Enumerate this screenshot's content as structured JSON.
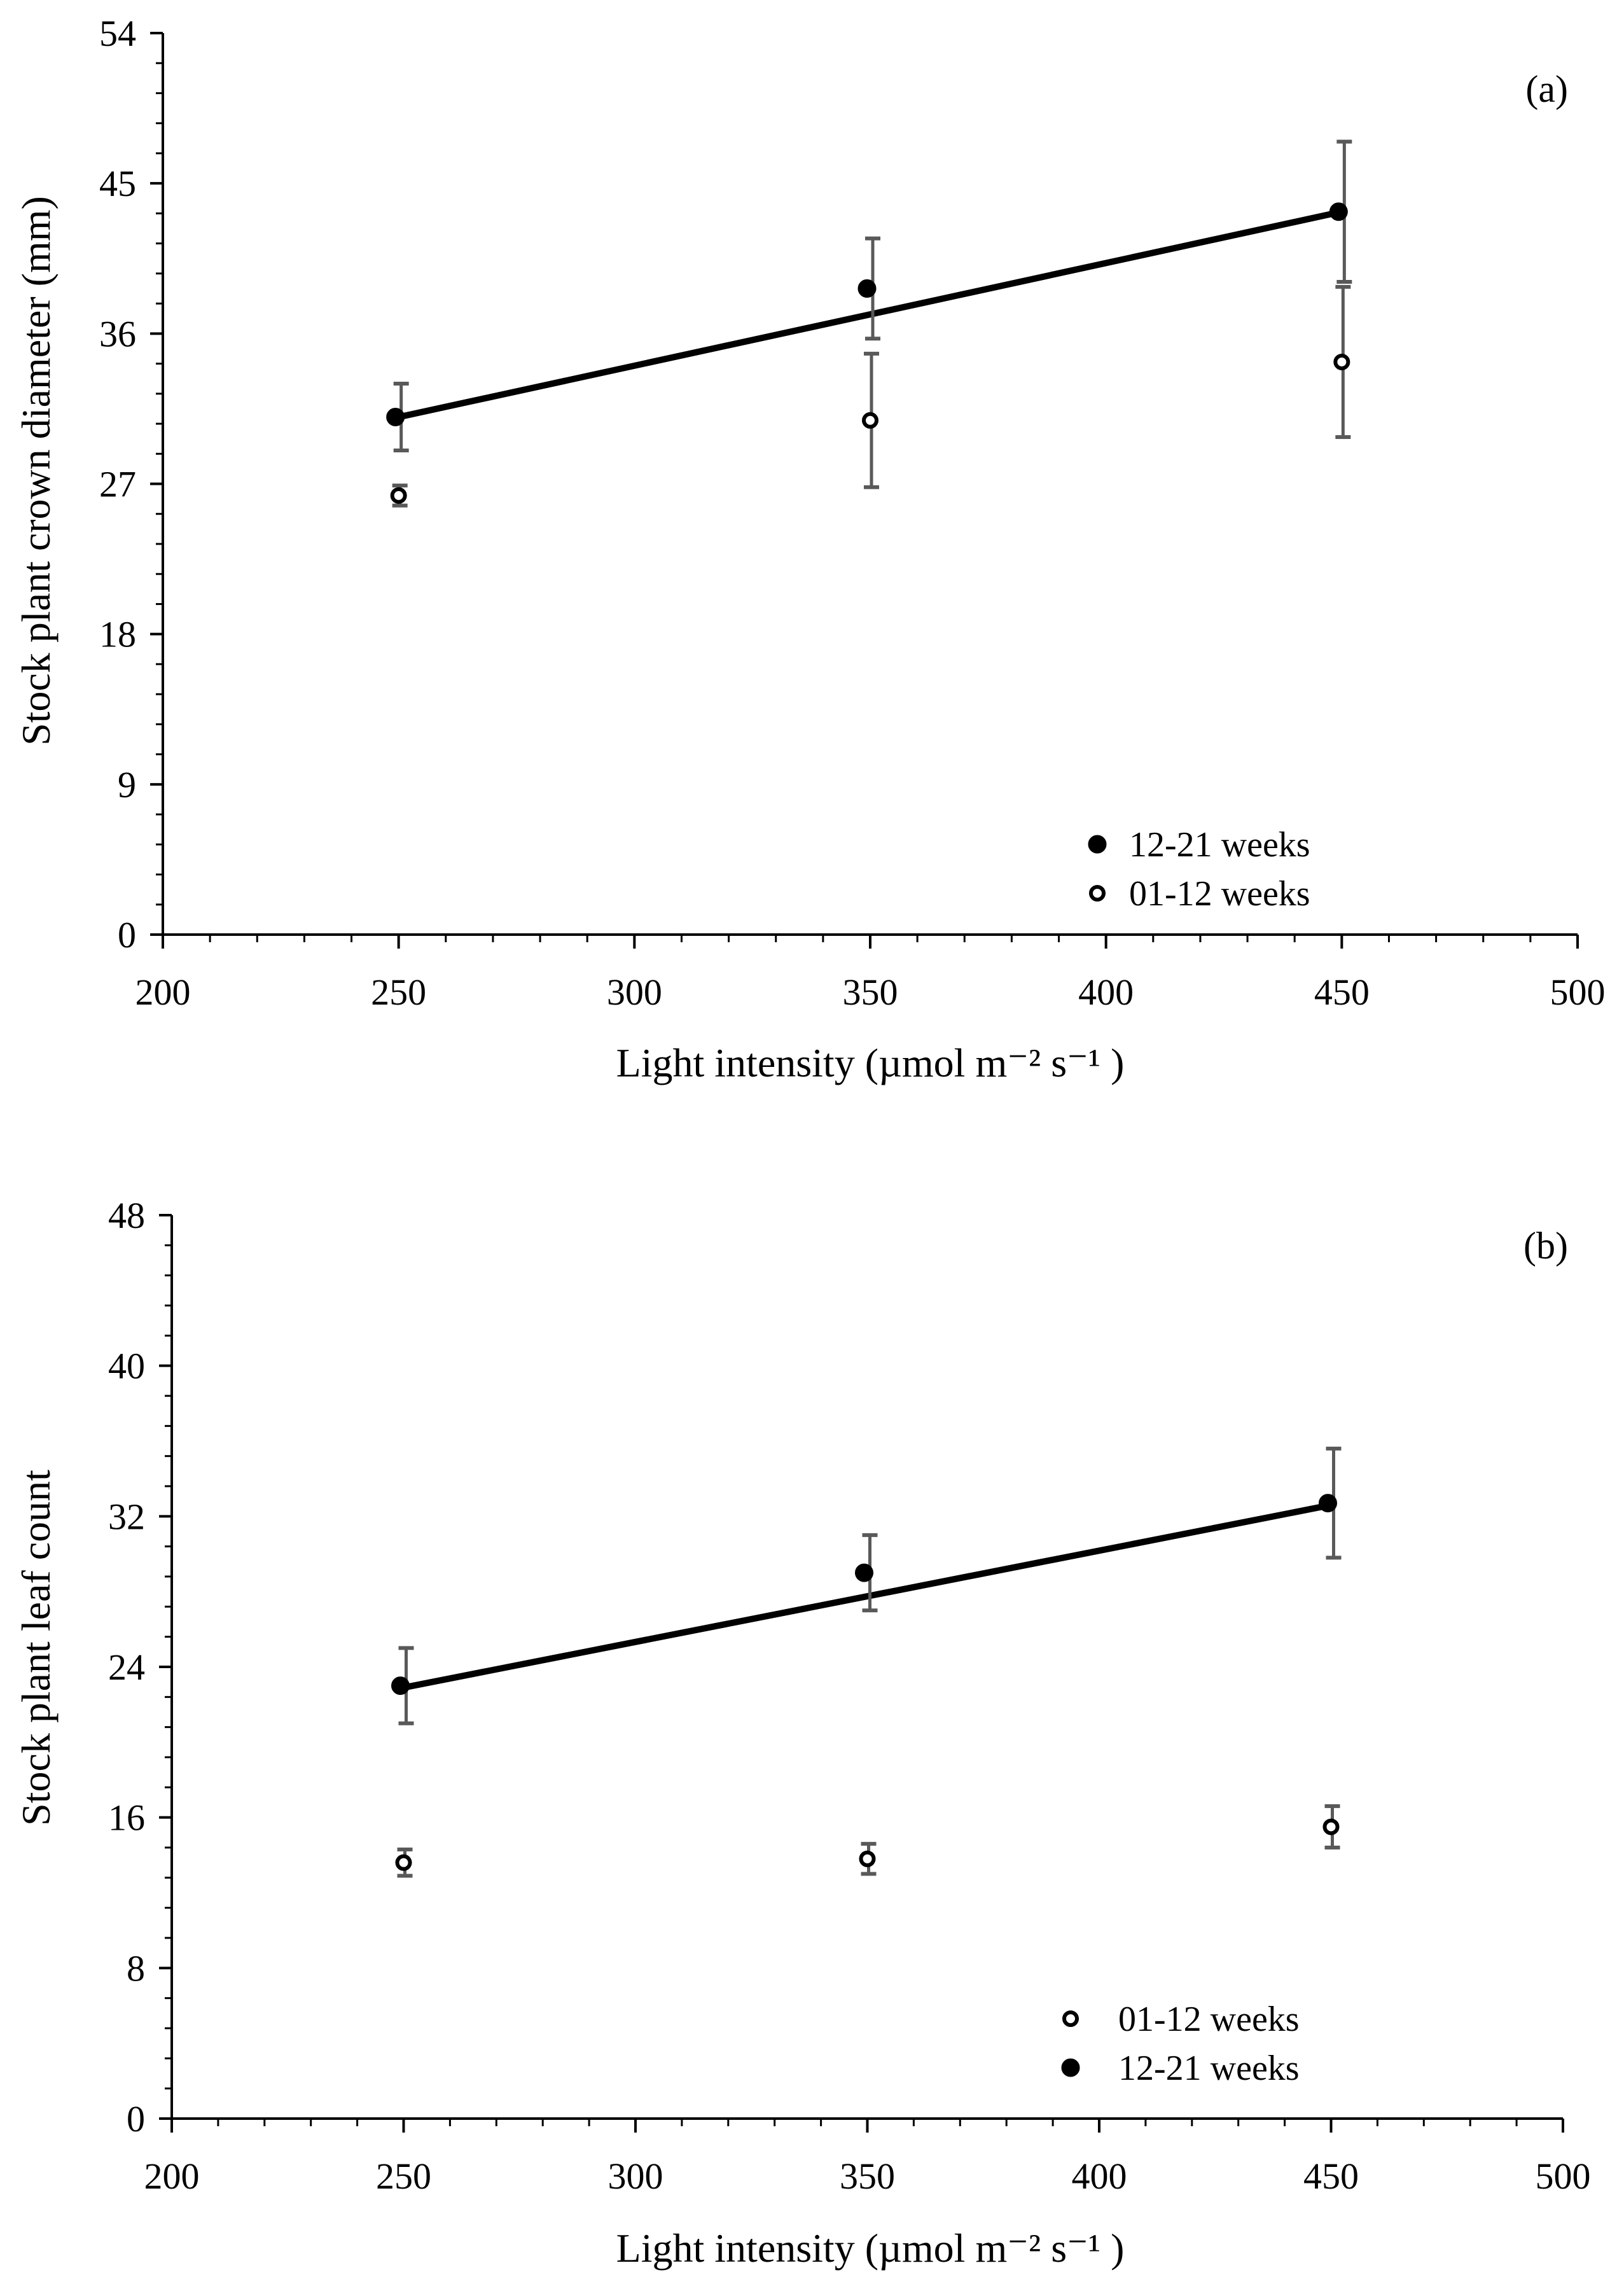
{
  "chart_data": [
    {
      "type": "scatter",
      "panel_label": "(a)",
      "xlabel": "Light intensity (µmol m⁻² s⁻¹ )",
      "ylabel": "Stock plant crown diameter (mm)",
      "xlim": [
        200,
        500
      ],
      "ylim": [
        0,
        54
      ],
      "x_ticks": [
        200,
        250,
        300,
        350,
        400,
        450,
        500
      ],
      "y_ticks": [
        0,
        9,
        18,
        27,
        36,
        45,
        54
      ],
      "legend_position": "bottom-right",
      "series": [
        {
          "name": "12-21 weeks",
          "marker": "filled-circle",
          "x": [
            250,
            350,
            450
          ],
          "y": [
            31.0,
            38.7,
            43.3
          ],
          "error": [
            2.0,
            3.0,
            4.2
          ],
          "trendline": {
            "x": [
              250,
              450
            ],
            "y": [
              31.0,
              43.3
            ]
          }
        },
        {
          "name": "01-12 weeks",
          "marker": "open-circle",
          "x": [
            250,
            350,
            450
          ],
          "y": [
            26.3,
            30.8,
            34.3
          ],
          "error": [
            0.6,
            4.0,
            4.5
          ],
          "trendline": null
        }
      ]
    },
    {
      "type": "scatter",
      "panel_label": "(b)",
      "xlabel": "Light intensity (µmol m⁻² s⁻¹ )",
      "ylabel": "Stock plant leaf count",
      "xlim": [
        200,
        500
      ],
      "ylim": [
        0,
        48
      ],
      "x_ticks": [
        200,
        250,
        300,
        350,
        400,
        450,
        500
      ],
      "y_ticks": [
        0,
        8,
        16,
        24,
        32,
        40,
        48
      ],
      "legend_position": "bottom-right",
      "series": [
        {
          "name": "01-12 weeks",
          "marker": "open-circle",
          "x": [
            250,
            350,
            450
          ],
          "y": [
            13.6,
            13.8,
            15.5
          ],
          "error": [
            0.7,
            0.8,
            1.1
          ],
          "trendline": null
        },
        {
          "name": "12-21 weeks",
          "marker": "filled-circle",
          "x": [
            250,
            350,
            450
          ],
          "y": [
            23.0,
            29.0,
            32.7
          ],
          "error": [
            2.0,
            2.0,
            2.9
          ],
          "trendline": {
            "x": [
              250,
              450
            ],
            "y": [
              22.9,
              32.6
            ]
          }
        }
      ]
    }
  ]
}
